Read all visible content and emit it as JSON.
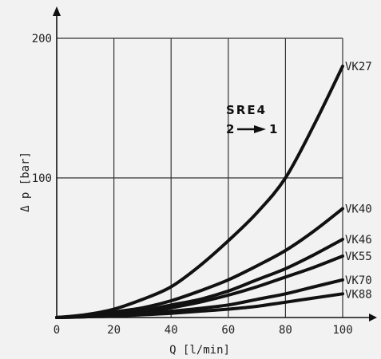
{
  "chart_data": {
    "type": "line",
    "xlabel": "Q [l/min]",
    "ylabel": "Δ p [bar]",
    "xlim": [
      0,
      100
    ],
    "ylim": [
      0,
      200
    ],
    "x_ticks": [
      "0",
      "20",
      "40",
      "60",
      "80",
      "100"
    ],
    "y_ticks": [
      "100",
      "200"
    ],
    "grid": true,
    "annotation": {
      "line1": "SRE4",
      "line2_from": "2",
      "line2_to": "1"
    },
    "x": [
      0,
      10,
      20,
      30,
      40,
      50,
      60,
      70,
      80,
      90,
      100
    ],
    "series": [
      {
        "name": "VK27",
        "values": [
          0,
          2,
          6,
          13,
          22,
          37,
          55,
          75,
          100,
          138,
          180
        ]
      },
      {
        "name": "VK40",
        "values": [
          0,
          1,
          4,
          7,
          12,
          19,
          27,
          37,
          48,
          62,
          78
        ]
      },
      {
        "name": "VK46",
        "values": [
          0,
          1,
          3,
          5,
          9,
          13,
          19,
          27,
          35,
          45,
          56
        ]
      },
      {
        "name": "VK55",
        "values": [
          0,
          1,
          2,
          4,
          7,
          11,
          16,
          22,
          29,
          36,
          44
        ]
      },
      {
        "name": "VK70",
        "values": [
          0,
          0.5,
          1.5,
          3,
          4.5,
          6.5,
          9,
          13,
          17,
          22,
          27
        ]
      },
      {
        "name": "VK88",
        "values": [
          0,
          0.5,
          1,
          2,
          3,
          4.5,
          6,
          8,
          11,
          14,
          17
        ]
      }
    ]
  }
}
